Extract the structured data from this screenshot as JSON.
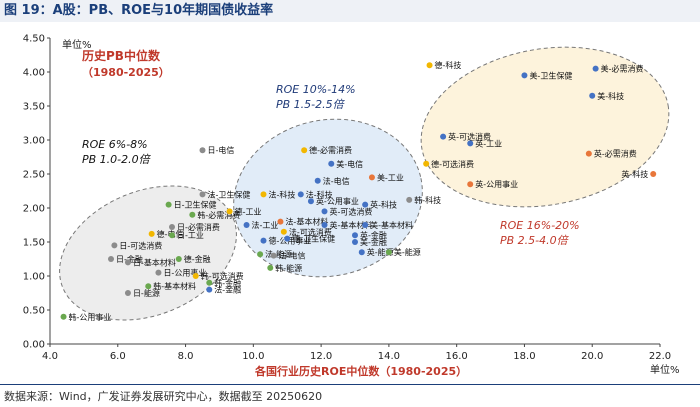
{
  "figure": {
    "title": "图 19：A股：PB、ROE与10年期国债收益率",
    "source": "数据来源：Wind，广发证券发展研究中心，数据截至 20250620"
  },
  "chart_data": {
    "type": "scatter",
    "ylabel": "单位%",
    "xlabel_unit": "单位%",
    "y_title": "历史PB中位数",
    "y_title_range": "（1980-2025）",
    "xlabel": "各国行业历史ROE中位数（1980-2025）",
    "xlim": [
      4.0,
      22.0
    ],
    "ylim": [
      0.0,
      4.5
    ],
    "xticks": [
      "4.0",
      "6.0",
      "8.0",
      "10.0",
      "12.0",
      "14.0",
      "16.0",
      "18.0",
      "20.0",
      "22.0"
    ],
    "yticks": [
      "0.00",
      "0.50",
      "1.00",
      "1.50",
      "2.00",
      "2.50",
      "3.00",
      "3.50",
      "4.00",
      "4.50"
    ],
    "grid": false,
    "annotations": [
      {
        "line1": "ROE  6%-8%",
        "line2": "PB  1.0-2.0倍",
        "color": "#111111"
      },
      {
        "line1": "ROE  10%-14%",
        "line2": "PB  1.5-2.5倍",
        "color": "#1f3a78"
      },
      {
        "line1": "ROE  16%-20%",
        "line2": "PB  2.5-4.0倍",
        "color": "#c0392b"
      }
    ],
    "colors": {
      "japan": "#8c8c8c",
      "korea": "#6aa84f",
      "china": "#f2b701",
      "us": "#4472c4",
      "ftse": "#e8763a"
    },
    "points": [
      {
        "label": "韩-公用事业",
        "x": 4.4,
        "y": 0.4,
        "c": "korea"
      },
      {
        "label": "日-能源",
        "x": 6.3,
        "y": 0.75,
        "c": "japan"
      },
      {
        "label": "日-金融",
        "x": 5.8,
        "y": 1.25,
        "c": "japan"
      },
      {
        "label": "日-可选消费",
        "x": 5.9,
        "y": 1.45,
        "c": "japan"
      },
      {
        "label": "日-基本材料",
        "x": 6.3,
        "y": 1.2,
        "c": "japan"
      },
      {
        "label": "韩-基本材料",
        "x": 6.9,
        "y": 0.85,
        "c": "korea"
      },
      {
        "label": "日-公用事业",
        "x": 7.2,
        "y": 1.05,
        "c": "japan"
      },
      {
        "label": "德-电信",
        "x": 7.0,
        "y": 1.62,
        "c": "china"
      },
      {
        "label": "日-必需消费",
        "x": 7.6,
        "y": 1.72,
        "c": "japan"
      },
      {
        "label": "德-金融",
        "x": 7.8,
        "y": 1.25,
        "c": "korea"
      },
      {
        "label": "日-工业",
        "x": 7.6,
        "y": 1.6,
        "c": "korea"
      },
      {
        "label": "日-卫生保健",
        "x": 7.5,
        "y": 2.05,
        "c": "korea"
      },
      {
        "label": "日-电信",
        "x": 8.5,
        "y": 2.85,
        "c": "japan"
      },
      {
        "label": "韩-金融",
        "x": 8.7,
        "y": 0.9,
        "c": "korea"
      },
      {
        "label": "法-金融",
        "x": 8.7,
        "y": 0.8,
        "c": "us"
      },
      {
        "label": "韩-可选消费",
        "x": 8.3,
        "y": 1.0,
        "c": "china"
      },
      {
        "label": "韩-必需消费",
        "x": 8.2,
        "y": 1.9,
        "c": "korea"
      },
      {
        "label": "法-卫生保健",
        "x": 8.5,
        "y": 2.2,
        "c": "japan"
      },
      {
        "label": "法-科技",
        "x": 10.3,
        "y": 2.2,
        "c": "china"
      },
      {
        "label": "德-工业",
        "x": 9.3,
        "y": 1.95,
        "c": "china"
      },
      {
        "label": "法-工业",
        "x": 9.8,
        "y": 1.75,
        "c": "us"
      },
      {
        "label": "法-基本材料",
        "x": 10.8,
        "y": 1.8,
        "c": "ftse"
      },
      {
        "label": "法-可选消费",
        "x": 10.9,
        "y": 1.65,
        "c": "china"
      },
      {
        "label": "德-公用事业",
        "x": 10.3,
        "y": 1.52,
        "c": "us"
      },
      {
        "label": "德-卫生保健",
        "x": 11.0,
        "y": 1.55,
        "c": "us"
      },
      {
        "label": "法-能源",
        "x": 10.2,
        "y": 1.32,
        "c": "korea"
      },
      {
        "label": "法-电信",
        "x": 10.6,
        "y": 1.3,
        "c": "japan"
      },
      {
        "label": "韩-能源",
        "x": 10.5,
        "y": 1.12,
        "c": "korea"
      },
      {
        "label": "德-必需消费",
        "x": 11.5,
        "y": 2.85,
        "c": "china"
      },
      {
        "label": "美-电信",
        "x": 12.3,
        "y": 2.65,
        "c": "us"
      },
      {
        "label": "法-电信",
        "x": 11.9,
        "y": 2.4,
        "c": "us"
      },
      {
        "label": "法-科技",
        "x": 11.4,
        "y": 2.2,
        "c": "us"
      },
      {
        "label": "英-公用事业",
        "x": 11.7,
        "y": 2.1,
        "c": "us"
      },
      {
        "label": "英-可选消费",
        "x": 12.1,
        "y": 1.95,
        "c": "us"
      },
      {
        "label": "英-基本材料",
        "x": 12.1,
        "y": 1.75,
        "c": "us"
      },
      {
        "label": "美-工业",
        "x": 13.5,
        "y": 2.45,
        "c": "ftse"
      },
      {
        "label": "英-科技",
        "x": 13.3,
        "y": 2.05,
        "c": "us"
      },
      {
        "label": "美-基本材料",
        "x": 13.3,
        "y": 1.75,
        "c": "us"
      },
      {
        "label": "英-金融",
        "x": 13.0,
        "y": 1.6,
        "c": "us"
      },
      {
        "label": "美-金融",
        "x": 13.0,
        "y": 1.5,
        "c": "us"
      },
      {
        "label": "英-能源",
        "x": 13.2,
        "y": 1.35,
        "c": "us"
      },
      {
        "label": "美-能源",
        "x": 14.0,
        "y": 1.35,
        "c": "korea"
      },
      {
        "label": "韩-科技",
        "x": 14.6,
        "y": 2.12,
        "c": "japan"
      },
      {
        "label": "德-科技",
        "x": 15.2,
        "y": 4.1,
        "c": "china"
      },
      {
        "label": "美-卫生保健",
        "x": 18.0,
        "y": 3.95,
        "c": "us"
      },
      {
        "label": "美-必需消费",
        "x": 20.1,
        "y": 4.05,
        "c": "us"
      },
      {
        "label": "美-科技",
        "x": 20.0,
        "y": 3.65,
        "c": "us"
      },
      {
        "label": "英-可选消费",
        "x": 15.6,
        "y": 3.05,
        "c": "us"
      },
      {
        "label": "英-工业",
        "x": 16.4,
        "y": 2.95,
        "c": "us"
      },
      {
        "label": "德-可选消费",
        "x": 15.1,
        "y": 2.65,
        "c": "china"
      },
      {
        "label": "英-必需消费",
        "x": 19.9,
        "y": 2.8,
        "c": "ftse"
      },
      {
        "label": "英-科技",
        "x": 21.8,
        "y": 2.5,
        "c": "ftse"
      },
      {
        "label": "英-公用事业",
        "x": 16.4,
        "y": 2.35,
        "c": "ftse"
      }
    ]
  }
}
